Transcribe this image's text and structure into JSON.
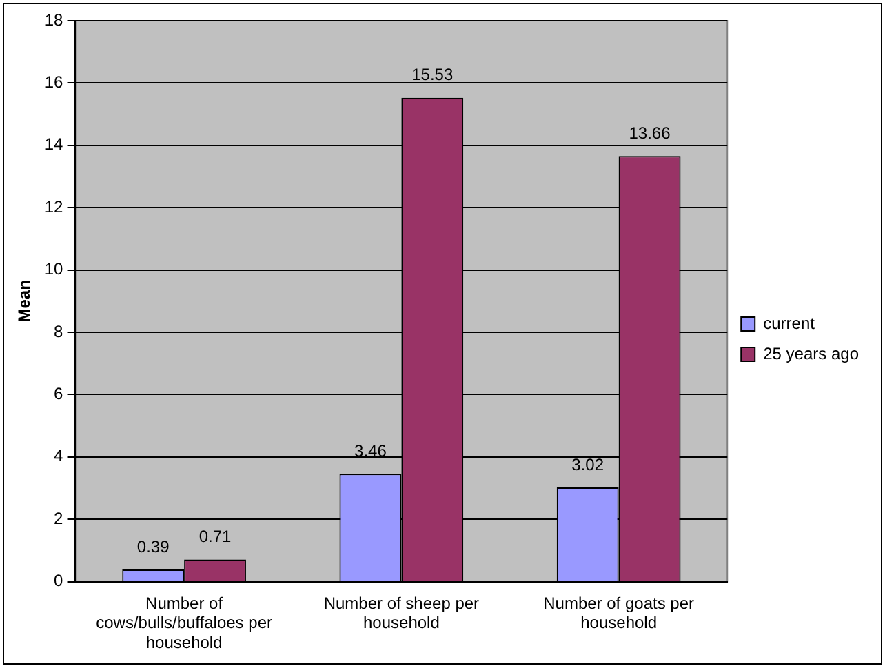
{
  "chart_data": {
    "type": "bar",
    "ylabel": "Mean",
    "categories": [
      "Number of cows/bulls/buffaloes per household",
      "Number of sheep per household",
      "Number of goats per household"
    ],
    "series": [
      {
        "name": "current",
        "color": "#9999ff",
        "values": [
          0.39,
          3.46,
          3.02
        ]
      },
      {
        "name": "25 years ago",
        "color": "#993366",
        "values": [
          0.71,
          15.53,
          13.66
        ]
      }
    ],
    "ylim": [
      0,
      18
    ],
    "yticks": [
      0,
      2,
      4,
      6,
      8,
      10,
      12,
      14,
      16,
      18
    ],
    "grid": "y",
    "legend": "right",
    "data_labels": true
  }
}
